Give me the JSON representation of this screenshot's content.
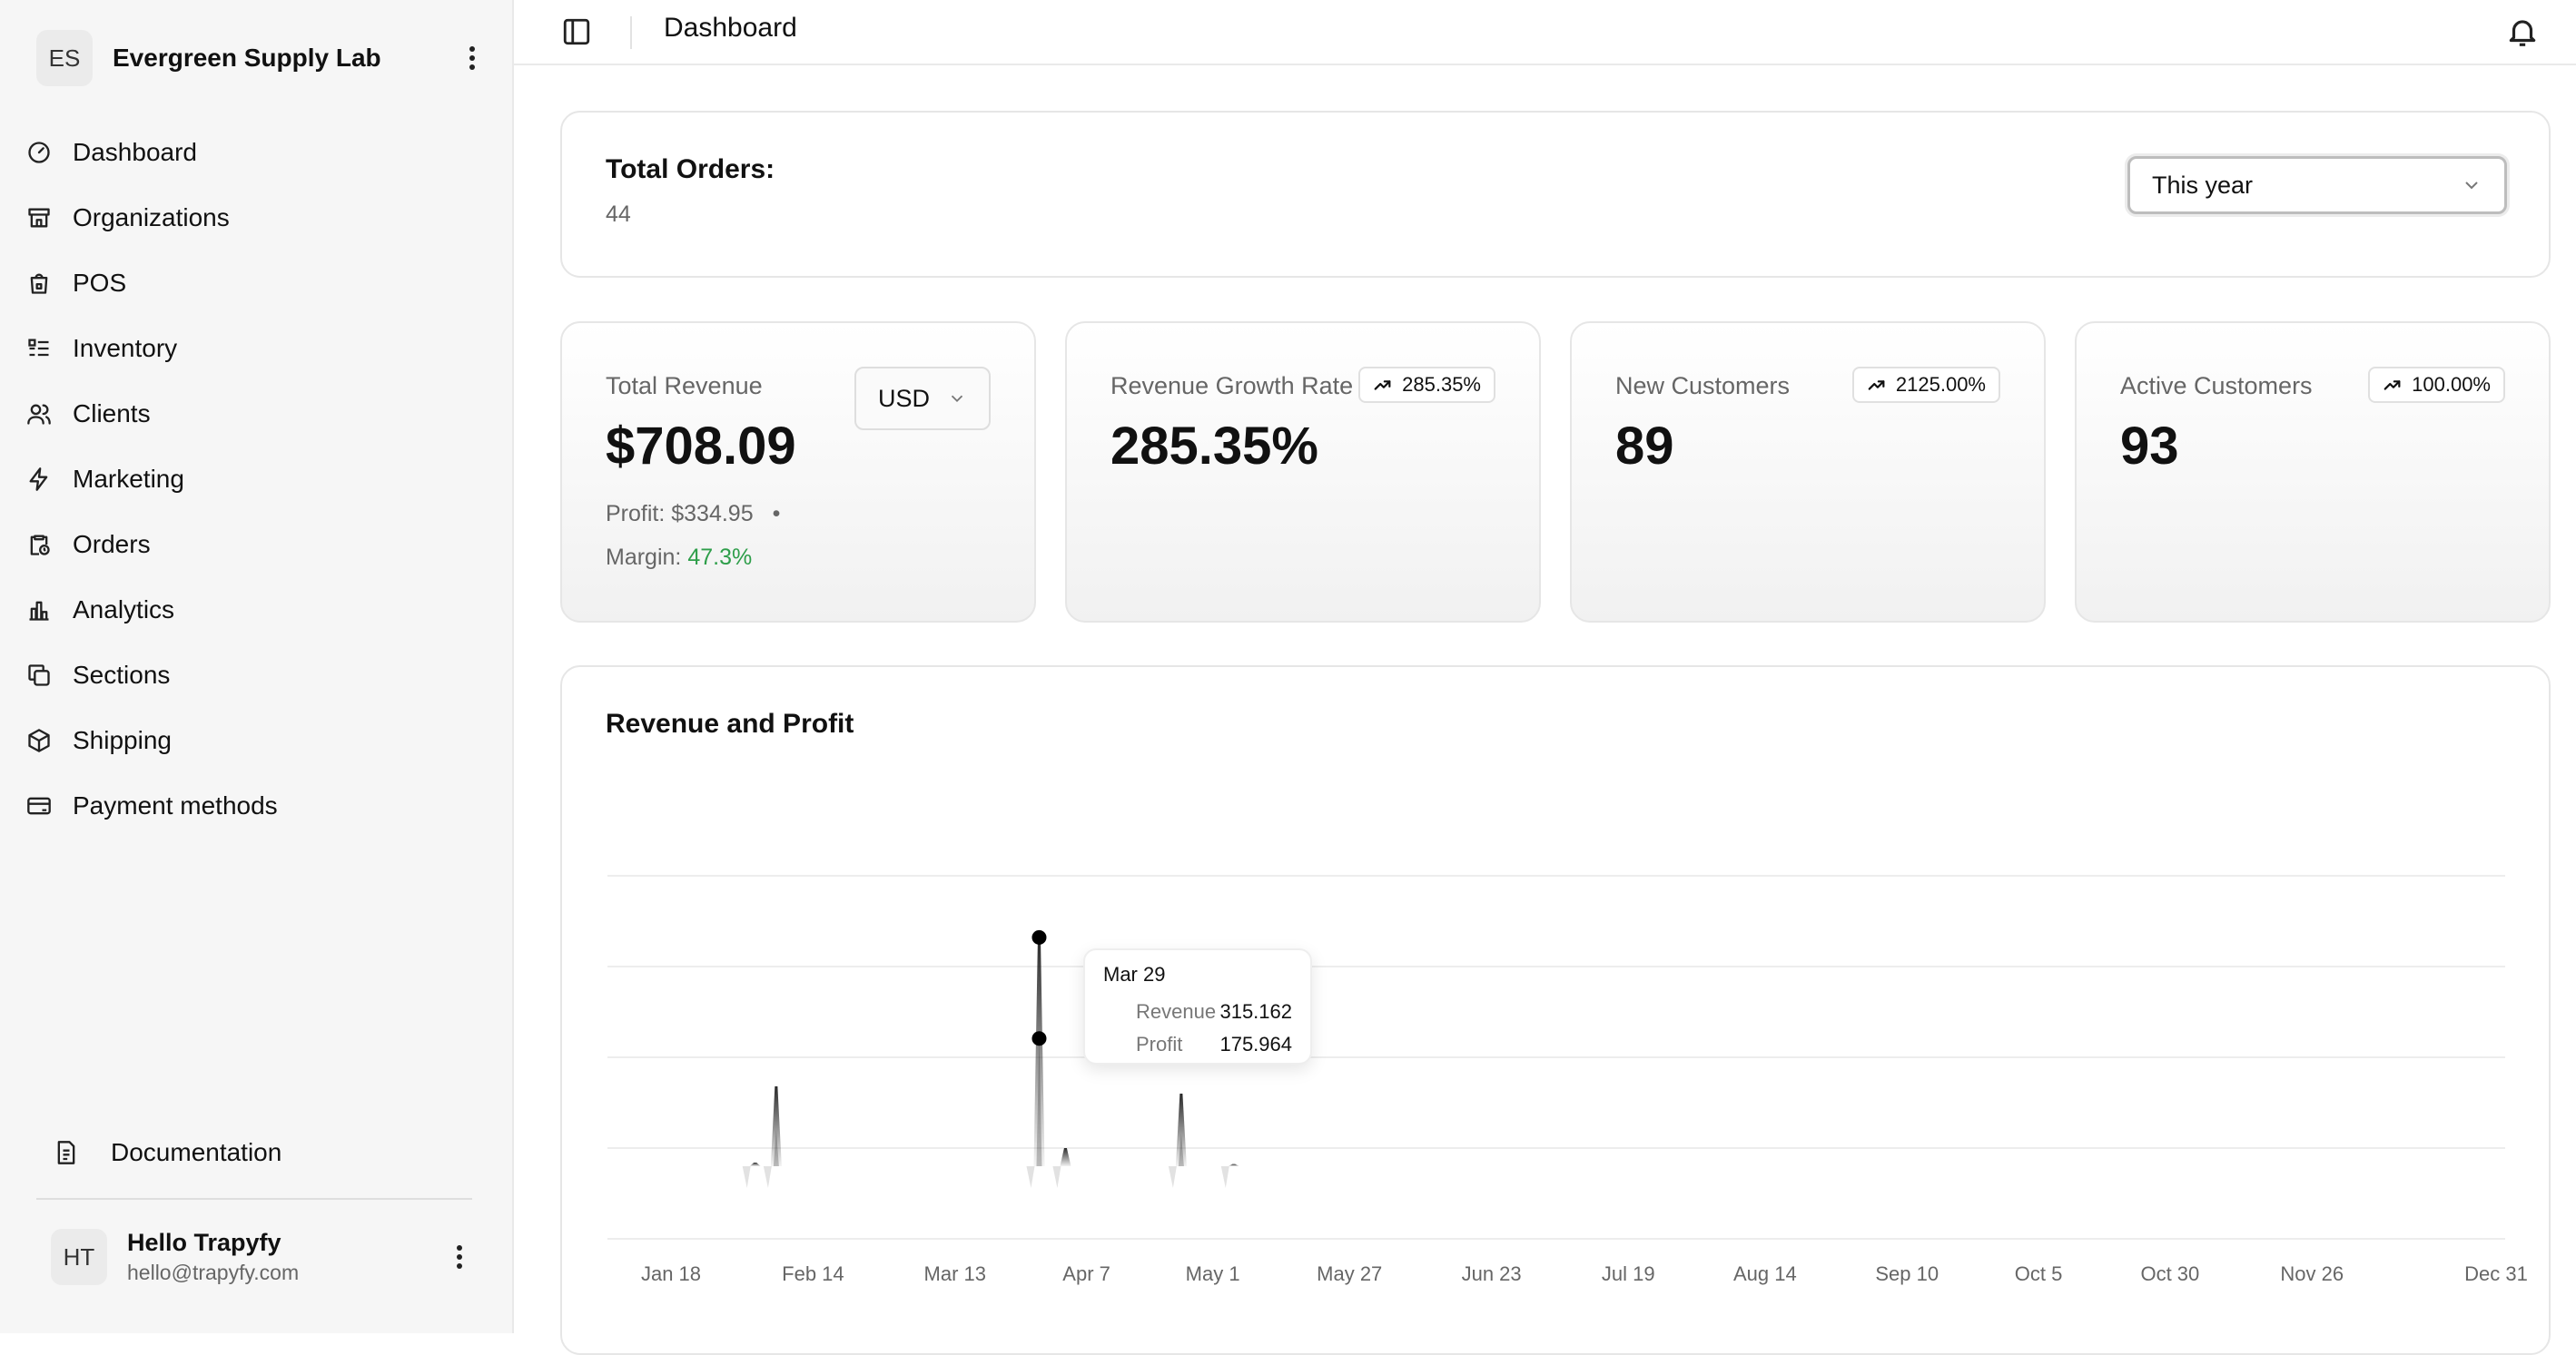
{
  "org": {
    "initials": "ES",
    "name": "Evergreen Supply Lab"
  },
  "nav": [
    {
      "label": "Dashboard",
      "icon": "gauge-icon"
    },
    {
      "label": "Organizations",
      "icon": "store-icon"
    },
    {
      "label": "POS",
      "icon": "shopping-bag-icon"
    },
    {
      "label": "Inventory",
      "icon": "list-icon"
    },
    {
      "label": "Clients",
      "icon": "users-icon"
    },
    {
      "label": "Marketing",
      "icon": "zap-icon"
    },
    {
      "label": "Orders",
      "icon": "clipboard-clock-icon"
    },
    {
      "label": "Analytics",
      "icon": "bar-chart-icon"
    },
    {
      "label": "Sections",
      "icon": "copy-icon"
    },
    {
      "label": "Shipping",
      "icon": "package-icon"
    },
    {
      "label": "Payment methods",
      "icon": "credit-card-icon"
    }
  ],
  "documentation": "Documentation",
  "user": {
    "initials": "HT",
    "name": "Hello Trapyfy",
    "email": "hello@trapyfy.com"
  },
  "topbar": {
    "title": "Dashboard"
  },
  "orders": {
    "label": "Total Orders:",
    "value": "44",
    "period": "This year"
  },
  "metrics": {
    "revenue": {
      "label": "Total Revenue",
      "value": "$708.09",
      "currency": "USD",
      "profit": "Profit: $334.95",
      "dot": "•",
      "margin_label": "Margin:",
      "margin_value": "47.3%"
    },
    "growth": {
      "label": "Revenue Growth Rate",
      "value": "285.35%",
      "badge": "285.35%"
    },
    "new_customers": {
      "label": "New Customers",
      "value": "89",
      "badge": "2125.00%"
    },
    "active_customers": {
      "label": "Active Customers",
      "value": "93",
      "badge": "100.00%"
    }
  },
  "colors": {
    "accent_green": "#2e9e4a",
    "series": "#111111"
  },
  "chart_data": {
    "type": "area",
    "title": "Revenue and Profit",
    "x_ticks": [
      "Jan 18",
      "Feb 14",
      "Mar 13",
      "Apr 7",
      "May 1",
      "May 27",
      "Jun 23",
      "Jul 19",
      "Aug 14",
      "Sep 10",
      "Oct 5",
      "Oct 30",
      "Nov 26",
      "Dec 31"
    ],
    "series": [
      {
        "name": "Revenue",
        "points": [
          [
            "Feb 3",
            5
          ],
          [
            "Feb 7",
            110
          ],
          [
            "Mar 29",
            315.162
          ],
          [
            "Apr 3",
            25
          ],
          [
            "Apr 25",
            100
          ],
          [
            "May 5",
            3
          ]
        ]
      },
      {
        "name": "Profit",
        "points": [
          [
            "Feb 7",
            50
          ],
          [
            "Mar 29",
            175.964
          ],
          [
            "Apr 25",
            45
          ]
        ]
      }
    ],
    "ylim": [
      -100,
      400
    ],
    "grid": true,
    "tooltip": {
      "date": "Mar 29",
      "rows": [
        {
          "label": "Revenue",
          "value": "315.162"
        },
        {
          "label": "Profit",
          "value": "175.964"
        }
      ]
    }
  }
}
